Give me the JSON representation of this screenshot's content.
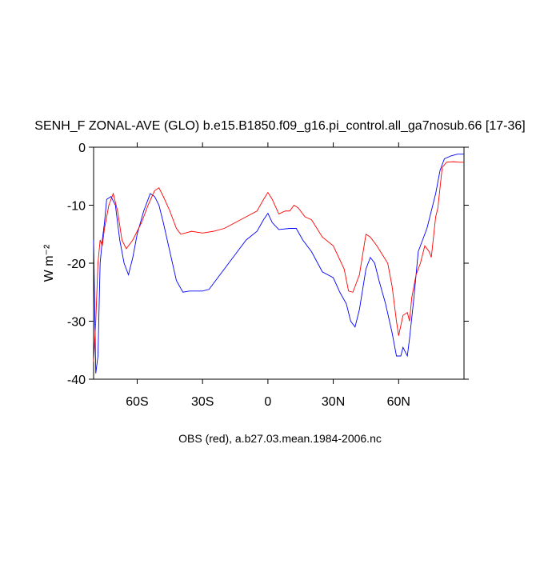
{
  "chart_data": {
    "type": "line",
    "title": "SENH_F ZONAL-AVE (GLO) b.e15.B1850.f09_g16.pi_control.all_ga7nosub.66 [17-36]",
    "y_label": "W m⁻²",
    "x_label": "OBS (red), a.b27.03.mean.1984-2006.nc",
    "xlim": [
      -80,
      90
    ],
    "ylim": [
      -40,
      0
    ],
    "xticks": [
      {
        "value": -60,
        "label": "60S"
      },
      {
        "value": -30,
        "label": "30S"
      },
      0,
      {
        "value": 30,
        "label": "30N"
      },
      {
        "value": 60,
        "label": "60N"
      }
    ],
    "yticks": [
      0,
      -10,
      -20,
      -30,
      -40
    ],
    "series": [
      {
        "color": "#0000ff",
        "x": [
          -80,
          -79,
          -78,
          -77,
          -76,
          -75,
          -74,
          -72,
          -70,
          -68,
          -66,
          -64,
          -62,
          -60,
          -57,
          -54,
          -52,
          -50,
          -48,
          -45,
          -42,
          -39,
          -36,
          -30,
          -27,
          -24,
          -20,
          -15,
          -10,
          -5,
          -2,
          0,
          2,
          5,
          10,
          13,
          16,
          20,
          25,
          30,
          33,
          36,
          38,
          40,
          42,
          45,
          47,
          49,
          51,
          54,
          57,
          59,
          61,
          62,
          64,
          65,
          67,
          69,
          71,
          73,
          75,
          77,
          79,
          81,
          84,
          87,
          90
        ],
        "values": [
          -16,
          -39,
          -36,
          -20,
          -16,
          -13,
          -9,
          -8.5,
          -10,
          -16,
          -20,
          -22,
          -19,
          -15,
          -11,
          -8,
          -8.5,
          -10,
          -13,
          -18,
          -23,
          -25,
          -24.8,
          -24.8,
          -24.5,
          -23,
          -21,
          -18.5,
          -16,
          -14.5,
          -12.5,
          -11.4,
          -13,
          -14.2,
          -14,
          -14,
          -16,
          -18,
          -21.5,
          -22.5,
          -25,
          -27,
          -30,
          -31,
          -28,
          -21,
          -19,
          -20,
          -23,
          -27,
          -32,
          -36,
          -36,
          -34.5,
          -36,
          -33,
          -26,
          -18,
          -16,
          -14,
          -11,
          -8,
          -4,
          -2,
          -1.5,
          -1.2,
          -1.2
        ]
      },
      {
        "color": "#ff0000",
        "x": [
          -80,
          -79,
          -78,
          -77,
          -76,
          -75,
          -73,
          -71,
          -69,
          -67,
          -65,
          -62,
          -58,
          -55,
          -52,
          -50,
          -48,
          -45,
          -42,
          -40,
          -35,
          -30,
          -25,
          -20,
          -15,
          -10,
          -5,
          -2,
          0,
          2,
          5,
          8,
          10,
          12,
          14,
          17,
          20,
          25,
          30,
          35,
          37,
          39,
          42,
          45,
          47,
          50,
          55,
          57,
          59,
          60,
          62,
          64,
          65,
          66,
          68,
          70,
          72,
          74,
          75,
          77,
          78,
          79,
          80,
          82,
          85,
          88,
          90
        ],
        "values": [
          -37,
          -30,
          -20,
          -16,
          -17,
          -14,
          -10,
          -8,
          -11,
          -16,
          -17.5,
          -16,
          -13,
          -10,
          -7.5,
          -7,
          -8.5,
          -11,
          -14,
          -15,
          -14.5,
          -14.8,
          -14.5,
          -14,
          -13,
          -12,
          -11,
          -9,
          -7.8,
          -9,
          -11.5,
          -11,
          -11,
          -10,
          -10.5,
          -12,
          -12.5,
          -15.5,
          -17,
          -21,
          -24.8,
          -25,
          -22,
          -15,
          -15.5,
          -17,
          -20,
          -24,
          -30,
          -32.5,
          -29,
          -28.5,
          -30,
          -26,
          -22,
          -20,
          -17,
          -18,
          -19,
          -12,
          -10.5,
          -7,
          -3.5,
          -2.6,
          -2.5,
          -2.6,
          -2.6
        ]
      }
    ]
  }
}
